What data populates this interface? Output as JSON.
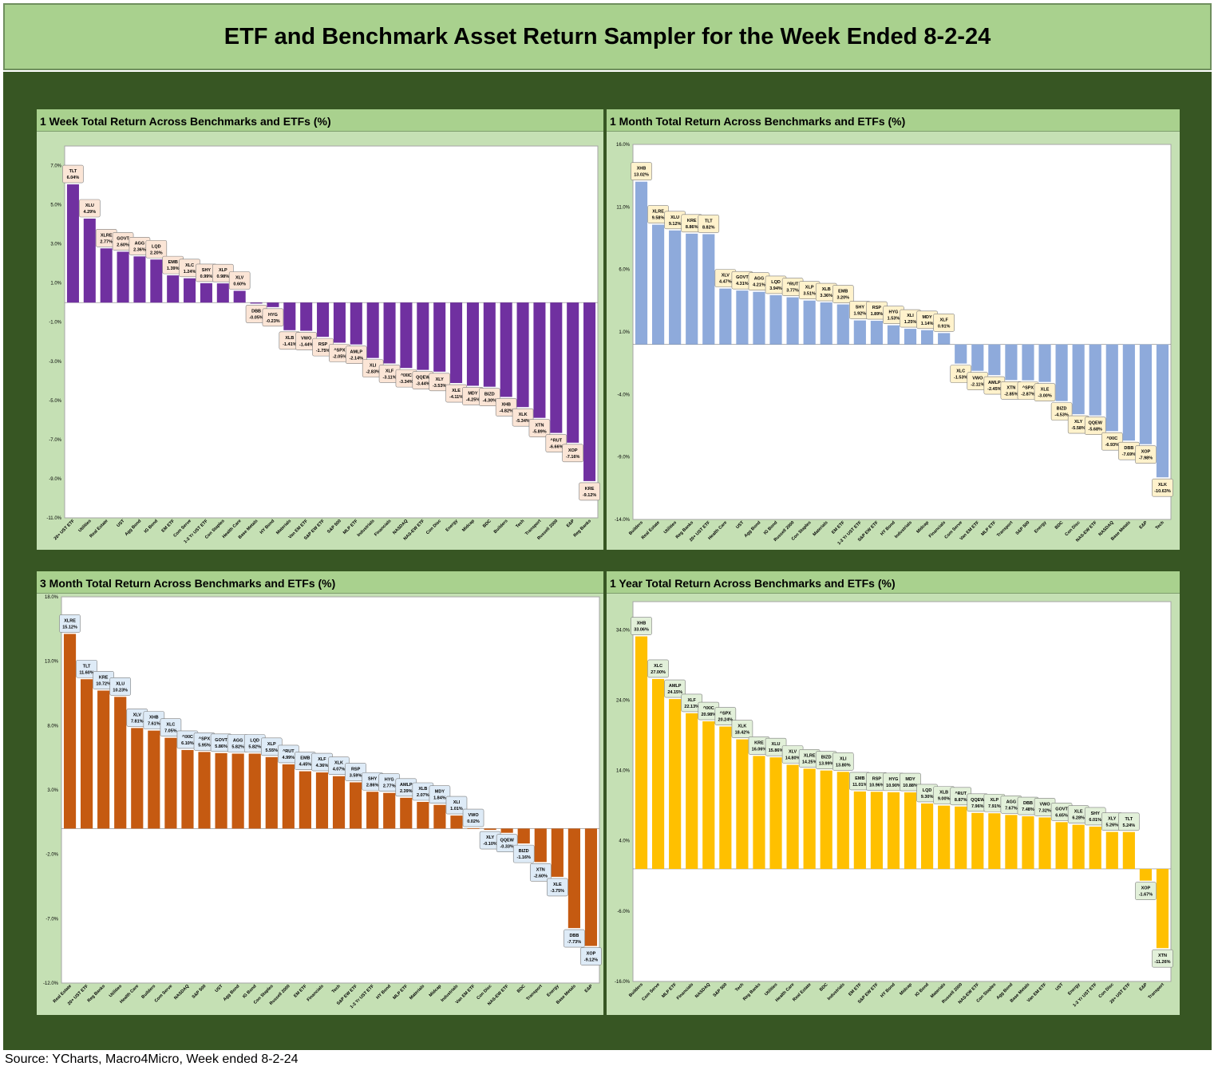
{
  "title": "ETF and Benchmark Asset Return Sampler for the Week Ended 8-2-24",
  "source": "Source: YCharts, Macro4Micro, Week ended 8-2-24",
  "colors": {
    "week": "#7030a0",
    "month": "#8eaadb",
    "three_month": "#c55a11",
    "year": "#ffc000",
    "label_pos_week": "#fbe5d6",
    "label_neg_week": "#fbe5d6",
    "label_month": "#fff2cc",
    "label_three_month": "#deebf7",
    "label_year": "#e2f0d9"
  },
  "chart_data": [
    {
      "type": "bar",
      "title": "1 Week Total Return Across Benchmarks and ETFs (%)",
      "ylim": [
        -11,
        8
      ],
      "yticks": [
        7,
        5,
        3,
        1,
        -1,
        -3,
        -5,
        -7,
        -9,
        -11
      ],
      "categories": [
        "20+ UST ETF",
        "Utilities",
        "Real Estate",
        "UST",
        "Agg Bond",
        "IG Bond",
        "EM ETF",
        "Com Serve",
        "1-3 Yr UST ETF",
        "Con Staples",
        "Health Care",
        "Base Metals",
        "HY Bond",
        "Materials",
        "Van EM ETF",
        "S&P EW ETF",
        "S&P 500",
        "MLP ETF",
        "Industrials",
        "Financials",
        "NASDAQ",
        "NAS-EW ETF",
        "Con Disc",
        "Energy",
        "Midcap",
        "BDC",
        "Builders",
        "Tech",
        "Transport",
        "Russell 2000",
        "E&P",
        "Reg Banks"
      ],
      "tickers": [
        "TLT",
        "XLU",
        "XLRE",
        "GOVT",
        "AGG",
        "LQD",
        "EMB",
        "XLC",
        "SHY",
        "XLP",
        "XLV",
        "DBB",
        "HYG",
        "XLB",
        "VWO",
        "RSP",
        "^SPX",
        "AMLP",
        "XLI",
        "XLF",
        "^IXIC",
        "QQEW",
        "XLY",
        "XLE",
        "MDY",
        "BIZD",
        "XHB",
        "XLK",
        "XTN",
        "^RUT",
        "XOP",
        "KRE"
      ],
      "values": [
        6.04,
        4.29,
        2.77,
        2.6,
        2.36,
        2.2,
        1.39,
        1.24,
        0.99,
        0.98,
        0.6,
        -0.05,
        -0.23,
        -1.41,
        -1.44,
        -1.75,
        -2.05,
        -2.14,
        -2.83,
        -3.11,
        -3.34,
        -3.44,
        -3.53,
        -4.11,
        -4.25,
        -4.3,
        -4.82,
        -5.34,
        -5.89,
        -6.66,
        -7.16,
        -9.12
      ],
      "labels": [
        "6.04%",
        "4.29%",
        "2.77%",
        "2.60%",
        "2.36%",
        "2.20%",
        "1.39%",
        "1.24%",
        "0.99%",
        "0.98%",
        "0.60%",
        "-0.05%",
        "-0.23%",
        "-1.41%",
        "-1.44%",
        "-1.75%",
        "-2.05%",
        "-2.14%",
        "-2.83%",
        "-3.11%",
        "-3.34%",
        "-3.44%",
        "-3.53%",
        "-4.11%",
        "-4.25%",
        "-4.30%",
        "-4.82%",
        "-5.34%",
        "-5.89%",
        "-6.66%",
        "-7.16%",
        "-9.12%"
      ]
    },
    {
      "type": "bar",
      "title": "1 Month Total Return Across Benchmarks and ETFs (%)",
      "ylim": [
        -14,
        16
      ],
      "yticks": [
        16,
        11,
        6,
        1,
        -4,
        -9,
        -14
      ],
      "categories": [
        "Builders",
        "Real Estate",
        "Utilities",
        "Reg Banks",
        "20+ UST ETF",
        "Health Care",
        "UST",
        "Agg Bond",
        "IG Bond",
        "Russell 2000",
        "Con Staples",
        "Materials",
        "EM ETF",
        "1-3 Yr UST ETF",
        "S&P EW ETF",
        "HY Bond",
        "Industrials",
        "Midcap",
        "Financials",
        "Com Serve",
        "Van EM ETF",
        "MLP ETF",
        "Transport",
        "S&P 500",
        "Energy",
        "BDC",
        "Con Disc",
        "NAS-EW ETF",
        "NASDAQ",
        "Base Metals",
        "E&P",
        "Tech"
      ],
      "tickers": [
        "XHB",
        "XLRE",
        "XLU",
        "KRE",
        "TLT",
        "XLV",
        "GOVT",
        "AGG",
        "LQD",
        "^RUT",
        "XLP",
        "XLB",
        "EMB",
        "SHY",
        "RSP",
        "HYG",
        "XLI",
        "MDY",
        "XLF",
        "XLC",
        "VWO",
        "AMLP",
        "XTN",
        "^SPX",
        "XLE",
        "BIZD",
        "XLY",
        "QQEW",
        "^IXIC",
        "DBB",
        "XOP",
        "XLK"
      ],
      "values": [
        13.02,
        9.58,
        9.12,
        8.86,
        8.82,
        4.47,
        4.31,
        4.21,
        3.94,
        3.77,
        3.51,
        3.36,
        3.2,
        1.92,
        1.89,
        1.53,
        1.25,
        1.14,
        0.91,
        -1.53,
        -2.11,
        -2.45,
        -2.85,
        -2.87,
        -3.0,
        -4.53,
        -5.58,
        -5.68,
        -6.93,
        -7.69,
        -7.98,
        -10.63
      ],
      "labels": [
        "13.02%",
        "9.58%",
        "9.12%",
        "8.86%",
        "8.82%",
        "4.47%",
        "4.31%",
        "4.21%",
        "3.94%",
        "3.77%",
        "3.51%",
        "3.36%",
        "3.20%",
        "1.92%",
        "1.89%",
        "1.53%",
        "1.25%",
        "1.14%",
        "0.91%",
        "-1.53%",
        "-2.11%",
        "-2.45%",
        "-2.85%",
        "-2.87%",
        "-3.00%",
        "-4.53%",
        "-5.58%",
        "-5.68%",
        "-6.93%",
        "-7.69%",
        "-7.98%",
        "-10.63%"
      ]
    },
    {
      "type": "bar",
      "title": "3 Month Total Return Across Benchmarks and ETFs (%)",
      "ylim": [
        -12,
        18
      ],
      "yticks": [
        18,
        13,
        8,
        3,
        -2,
        -7,
        -12
      ],
      "categories": [
        "Real Estate",
        "20+ UST ETF",
        "Reg Banks",
        "Utilities",
        "Health Care",
        "Builders",
        "Com Serve",
        "NASDAQ",
        "S&P 500",
        "UST",
        "Agg Bond",
        "IG Bond",
        "Con Staples",
        "Russell 2000",
        "EM ETF",
        "Financials",
        "Tech",
        "S&P EW ETF",
        "1-3 Yr UST ETF",
        "HY Bond",
        "MLP ETF",
        "Materials",
        "Midcap",
        "Industrials",
        "Van EM ETF",
        "Con Disc",
        "NAS-EW ETF",
        "BDC",
        "Transport",
        "Energy",
        "Base Metals",
        "E&P"
      ],
      "tickers": [
        "XLRE",
        "TLT",
        "KRE",
        "XLU",
        "XLV",
        "XHB",
        "XLC",
        "^IXIC",
        "^SPX",
        "GOVT",
        "AGG",
        "LQD",
        "XLP",
        "^RUT",
        "EMB",
        "XLF",
        "XLK",
        "RSP",
        "SHY",
        "HYG",
        "AMLP",
        "XLB",
        "MDY",
        "XLI",
        "VWO",
        "XLY",
        "QQEW",
        "BIZD",
        "XTN",
        "XLE",
        "DBB",
        "XOP"
      ],
      "values": [
        15.12,
        11.6,
        10.72,
        10.23,
        7.81,
        7.61,
        7.05,
        6.1,
        5.95,
        5.86,
        5.82,
        5.82,
        5.55,
        4.99,
        4.45,
        4.36,
        4.07,
        3.59,
        2.86,
        2.77,
        2.39,
        2.07,
        1.84,
        1.01,
        0.02,
        -0.1,
        -0.33,
        -1.16,
        -2.6,
        -3.75,
        -7.73,
        -9.12
      ],
      "labels": [
        "15.12%",
        "11.60%",
        "10.72%",
        "10.23%",
        "7.81%",
        "7.61%",
        "7.05%",
        "6.10%",
        "5.95%",
        "5.86%",
        "5.82%",
        "5.82%",
        "5.55%",
        "4.99%",
        "4.45%",
        "4.36%",
        "4.07%",
        "3.59%",
        "2.86%",
        "2.77%",
        "2.39%",
        "2.07%",
        "1.84%",
        "1.01%",
        "0.02%",
        "-0.10%",
        "-0.33%",
        "-1.16%",
        "-2.60%",
        "-3.75%",
        "-7.73%",
        "-9.12%"
      ]
    },
    {
      "type": "bar",
      "title": "1 Year Total Return Across Benchmarks and ETFs (%)",
      "ylim": [
        -16,
        38
      ],
      "yticks": [
        34,
        24,
        14,
        4,
        -6,
        -16
      ],
      "categories": [
        "Builders",
        "Com Serve",
        "MLP ETF",
        "Financials",
        "NASDAQ",
        "S&P 500",
        "Tech",
        "Reg Banks",
        "Utilities",
        "Health Care",
        "Real Estate",
        "BDC",
        "Industrials",
        "EM ETF",
        "S&P EW ETF",
        "HY Bond",
        "Midcap",
        "IG Bond",
        "Materials",
        "Russell 2000",
        "NAS-EW ETF",
        "Con Staples",
        "Agg Bond",
        "Base Metals",
        "Van EM ETF",
        "UST",
        "Energy",
        "1-3 Yr UST ETF",
        "Con Disc",
        "20+ UST ETF",
        "E&P",
        "Transport"
      ],
      "tickers": [
        "XHB",
        "XLC",
        "AMLP",
        "XLF",
        "^IXIC",
        "^SPX",
        "XLK",
        "KRE",
        "XLU",
        "XLV",
        "XLRE",
        "BIZD",
        "XLI",
        "EMB",
        "RSP",
        "HYG",
        "MDY",
        "LQD",
        "XLB",
        "^RUT",
        "QQEW",
        "XLP",
        "AGG",
        "DBB",
        "VWO",
        "GOVT",
        "XLE",
        "SHY",
        "XLY",
        "TLT",
        "XOP",
        "XTN"
      ],
      "values": [
        33.06,
        27.0,
        24.15,
        22.13,
        20.98,
        20.24,
        18.42,
        16.06,
        15.86,
        14.8,
        14.25,
        13.99,
        13.8,
        11.01,
        10.96,
        10.9,
        10.88,
        9.3,
        9.0,
        8.87,
        7.96,
        7.91,
        7.67,
        7.48,
        7.32,
        6.65,
        6.28,
        6.01,
        5.26,
        5.24,
        -1.67,
        -11.26
      ],
      "labels": [
        "33.06%",
        "27.00%",
        "24.15%",
        "22.13%",
        "20.98%",
        "20.24%",
        "18.42%",
        "16.06%",
        "15.86%",
        "14.80%",
        "14.25%",
        "13.99%",
        "13.80%",
        "11.01%",
        "10.96%",
        "10.90%",
        "10.88%",
        "9.30%",
        "9.00%",
        "8.87%",
        "7.96%",
        "7.91%",
        "7.67%",
        "7.48%",
        "7.32%",
        "6.65%",
        "6.28%",
        "6.01%",
        "5.26%",
        "5.24%",
        "-1.67%",
        "-11.26%"
      ]
    }
  ]
}
